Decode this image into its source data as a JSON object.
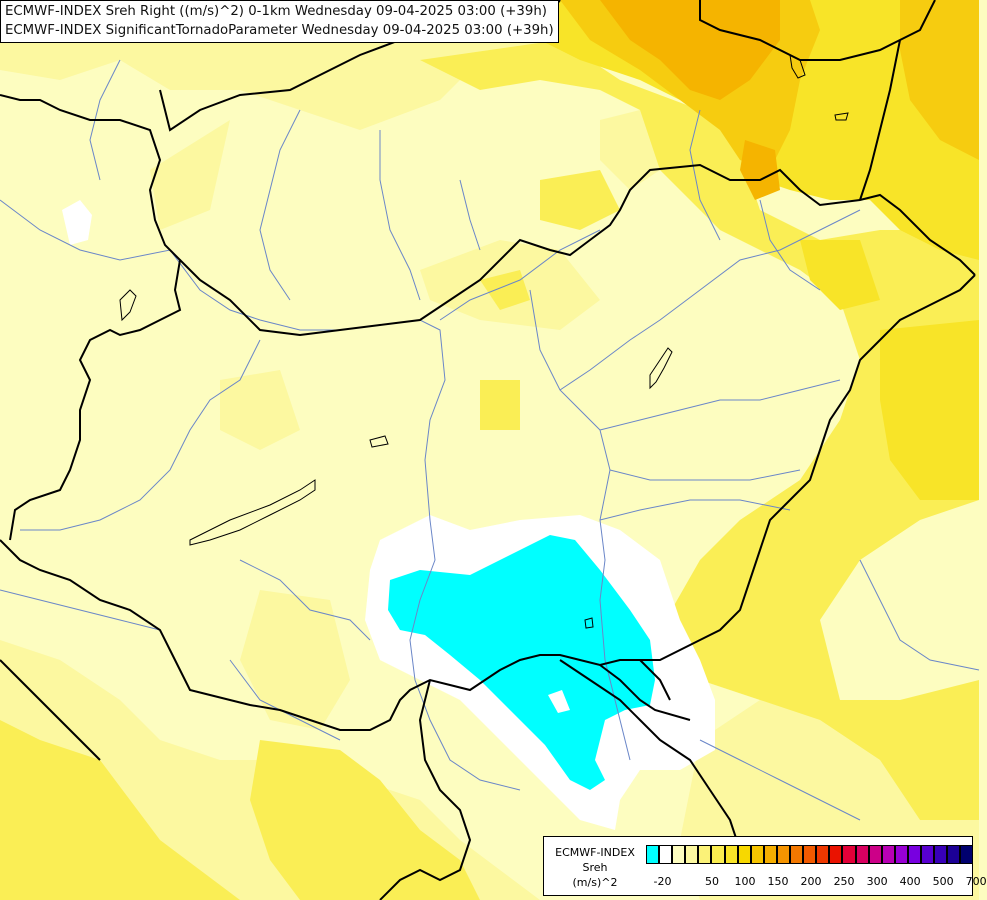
{
  "header": {
    "line1": "ECMWF-INDEX Sreh Right ((m/s)^2) 0-1km Wednesday 09-04-2025 03:00 (+39h)",
    "line2": "ECMWF-INDEX SignificantTornadoParameter Wednesday 09-04-2025 03:00 (+39h)"
  },
  "legend": {
    "title1": "ECMWF-INDEX",
    "title2": "Sreh",
    "title3": "(m/s)^2",
    "colors": [
      "#00ffff",
      "#ffffff",
      "#fdfdc0",
      "#fcf8a0",
      "#fbf278",
      "#faed50",
      "#f8e428",
      "#f7d800",
      "#f6c400",
      "#f5ae00",
      "#f59400",
      "#f37800",
      "#f15a00",
      "#ee3800",
      "#ea1200",
      "#e20038",
      "#d80060",
      "#cc0088",
      "#b800b4",
      "#9800d4",
      "#7800e0",
      "#5800d0",
      "#3800b8",
      "#1c0096",
      "#00006e"
    ],
    "ticks": [
      "-20",
      "50",
      "100",
      "150",
      "200",
      "250",
      "300",
      "400",
      "500",
      "700"
    ],
    "tick_positions_index": [
      1,
      4,
      6,
      8,
      10,
      12,
      14,
      16,
      18,
      20
    ]
  },
  "map": {
    "fill_colors": {
      "base": "#fdfdc0",
      "light_yellow": "#fcf8a0",
      "yellow": "#faee55",
      "bright_yellow": "#f8e428",
      "orange_yellow": "#f6cc10",
      "orange": "#f5b400",
      "white": "#ffffff",
      "cyan": "#00ffff"
    },
    "border_color": "#000000",
    "river_color": "#6a86c8"
  }
}
